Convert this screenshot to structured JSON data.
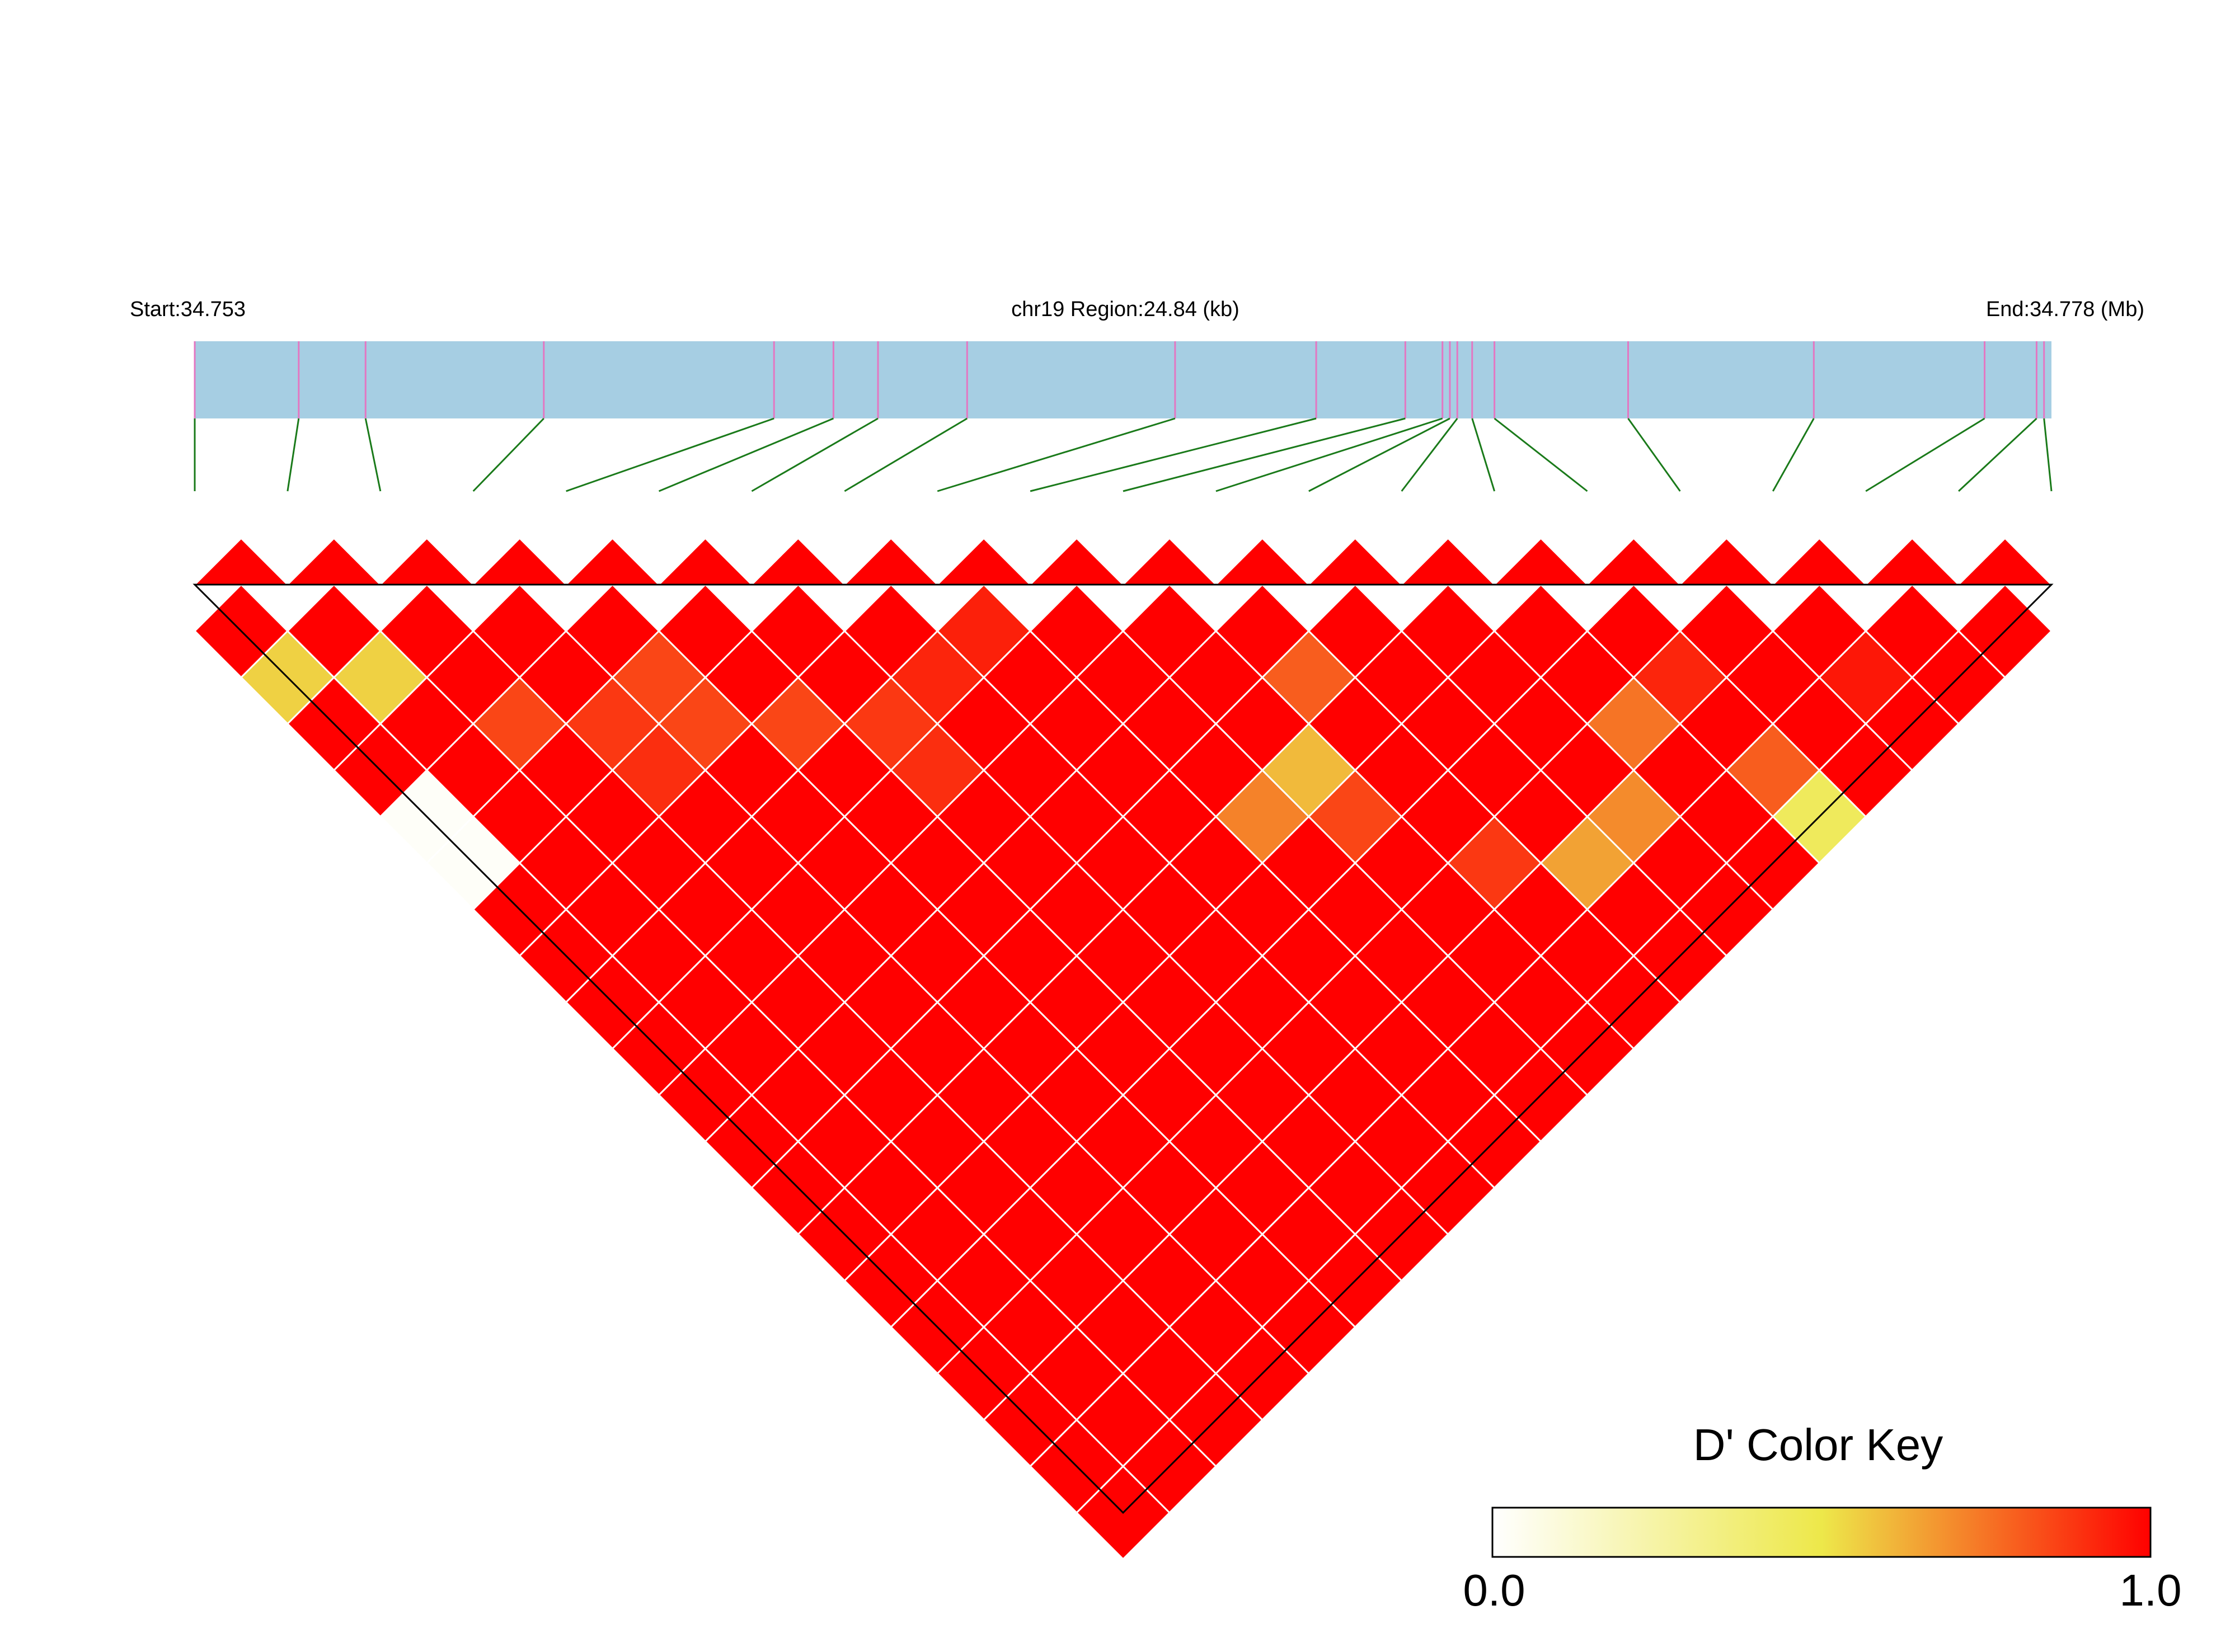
{
  "header": {
    "start_label": "Start:34.753",
    "region_label": "chr19 Region:24.84 (kb)",
    "end_label": "End:34.778 (Mb)"
  },
  "color_key": {
    "title": "D' Color Key",
    "min_label": "0.0",
    "max_label": "1.0",
    "colors": [
      "#ffffff",
      "#ede84a",
      "#ff0000"
    ]
  },
  "chart_data": {
    "type": "heatmap",
    "description": "LD heatmap (D') for 21 SNPs in chr19 region 34.753-34.778 Mb",
    "region_start_mb": 34.753,
    "region_end_mb": 34.778,
    "region_kb": 24.84,
    "snp_count": 21,
    "snp_positions_mb": [
      34.753,
      34.7544,
      34.7553,
      34.7577,
      34.7608,
      34.7616,
      34.7622,
      34.7634,
      34.7662,
      34.7681,
      34.7693,
      34.7698,
      34.7699,
      34.77,
      34.7702,
      34.7705,
      34.7723,
      34.7748,
      34.7771,
      34.7778,
      34.7779
    ],
    "d_prime_range": [
      0.0,
      1.0
    ],
    "default_d_prime": 1.0,
    "highlighted_cells": [
      {
        "i": 1,
        "j": 3,
        "d_prime": 0.55
      },
      {
        "i": 2,
        "j": 4,
        "d_prime": 0.55
      },
      {
        "i": 1,
        "j": 6,
        "d_prime": 0.02
      },
      {
        "i": 1,
        "j": 7,
        "d_prime": 0.02
      },
      {
        "i": 3,
        "j": 6,
        "d_prime": 0.85
      },
      {
        "i": 4,
        "j": 7,
        "d_prime": 0.88
      },
      {
        "i": 5,
        "j": 7,
        "d_prime": 0.85
      },
      {
        "i": 4,
        "j": 8,
        "d_prime": 0.9
      },
      {
        "i": 5,
        "j": 8,
        "d_prime": 0.85
      },
      {
        "i": 6,
        "j": 9,
        "d_prime": 0.85
      },
      {
        "i": 7,
        "j": 10,
        "d_prime": 0.88
      },
      {
        "i": 8,
        "j": 10,
        "d_prime": 0.92
      },
      {
        "i": 7,
        "j": 11,
        "d_prime": 0.9
      },
      {
        "i": 10,
        "j": 15,
        "d_prime": 0.72
      },
      {
        "i": 11,
        "j": 15,
        "d_prime": 0.6
      },
      {
        "i": 11,
        "j": 16,
        "d_prime": 0.85
      },
      {
        "i": 12,
        "j": 18,
        "d_prime": 0.88
      },
      {
        "i": 13,
        "j": 19,
        "d_prime": 0.65
      },
      {
        "i": 14,
        "j": 19,
        "d_prime": 0.7
      },
      {
        "i": 9,
        "j": 10,
        "d_prime": 0.93
      },
      {
        "i": 12,
        "j": 14,
        "d_prime": 0.8
      },
      {
        "i": 15,
        "j": 18,
        "d_prime": 0.75
      },
      {
        "i": 16,
        "j": 18,
        "d_prime": 0.92
      },
      {
        "i": 16,
        "j": 20,
        "d_prime": 0.8
      },
      {
        "i": 16,
        "j": 21,
        "d_prime": 0.45
      },
      {
        "i": 18,
        "j": 20,
        "d_prime": 0.95
      }
    ]
  }
}
